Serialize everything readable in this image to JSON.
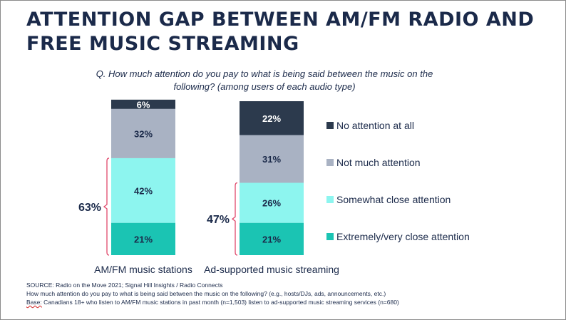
{
  "title": "ATTENTION GAP BETWEEN AM/FM RADIO AND FREE MUSIC STREAMING",
  "question": "Q. How much attention do you pay to what is being said between the music on the following?  (among users of each audio type)",
  "source": {
    "line1": "SOURCE: Radio on the Move 2021; Signal Hill Insights / Radio Connects",
    "line2": "How much attention do you pay to what is being said between the music on the following? (e.g., hosts/DJs, ads, announcements, etc.)",
    "base_label": "Base:",
    "base_text": " Canadians 18+ who listen to AM/FM music stations in past month (n=1,503) listen to ad-supported music streaming services (n=680)"
  },
  "chart_data": {
    "type": "bar",
    "stacked": true,
    "categories": [
      "AM/FM music stations",
      "Ad-supported music streaming"
    ],
    "series": [
      {
        "name": "Extremely/very close attention",
        "values": [
          21,
          21
        ],
        "color": "#1bc4b3"
      },
      {
        "name": "Somewhat close attention",
        "values": [
          42,
          26
        ],
        "color": "#8df5ef"
      },
      {
        "name": "Not much attention",
        "values": [
          32,
          31
        ],
        "color": "#a9b2c3"
      },
      {
        "name": "No attention at all",
        "values": [
          6,
          22
        ],
        "color": "#2c3a4d"
      }
    ],
    "value_format": "%",
    "brackets": [
      {
        "category": "AM/FM music stations",
        "label": "63%",
        "spans": [
          "Extremely/very close attention",
          "Somewhat close attention"
        ]
      },
      {
        "category": "Ad-supported music streaming",
        "label": "47%",
        "spans": [
          "Extremely/very close attention",
          "Somewhat close attention"
        ]
      }
    ],
    "legend_order": [
      "No attention at all",
      "Not much attention",
      "Somewhat close attention",
      "Extremely/very close attention"
    ],
    "legend_placement": "right",
    "bracket_color": "#e0486b",
    "text_color": "#1b2a4a"
  }
}
